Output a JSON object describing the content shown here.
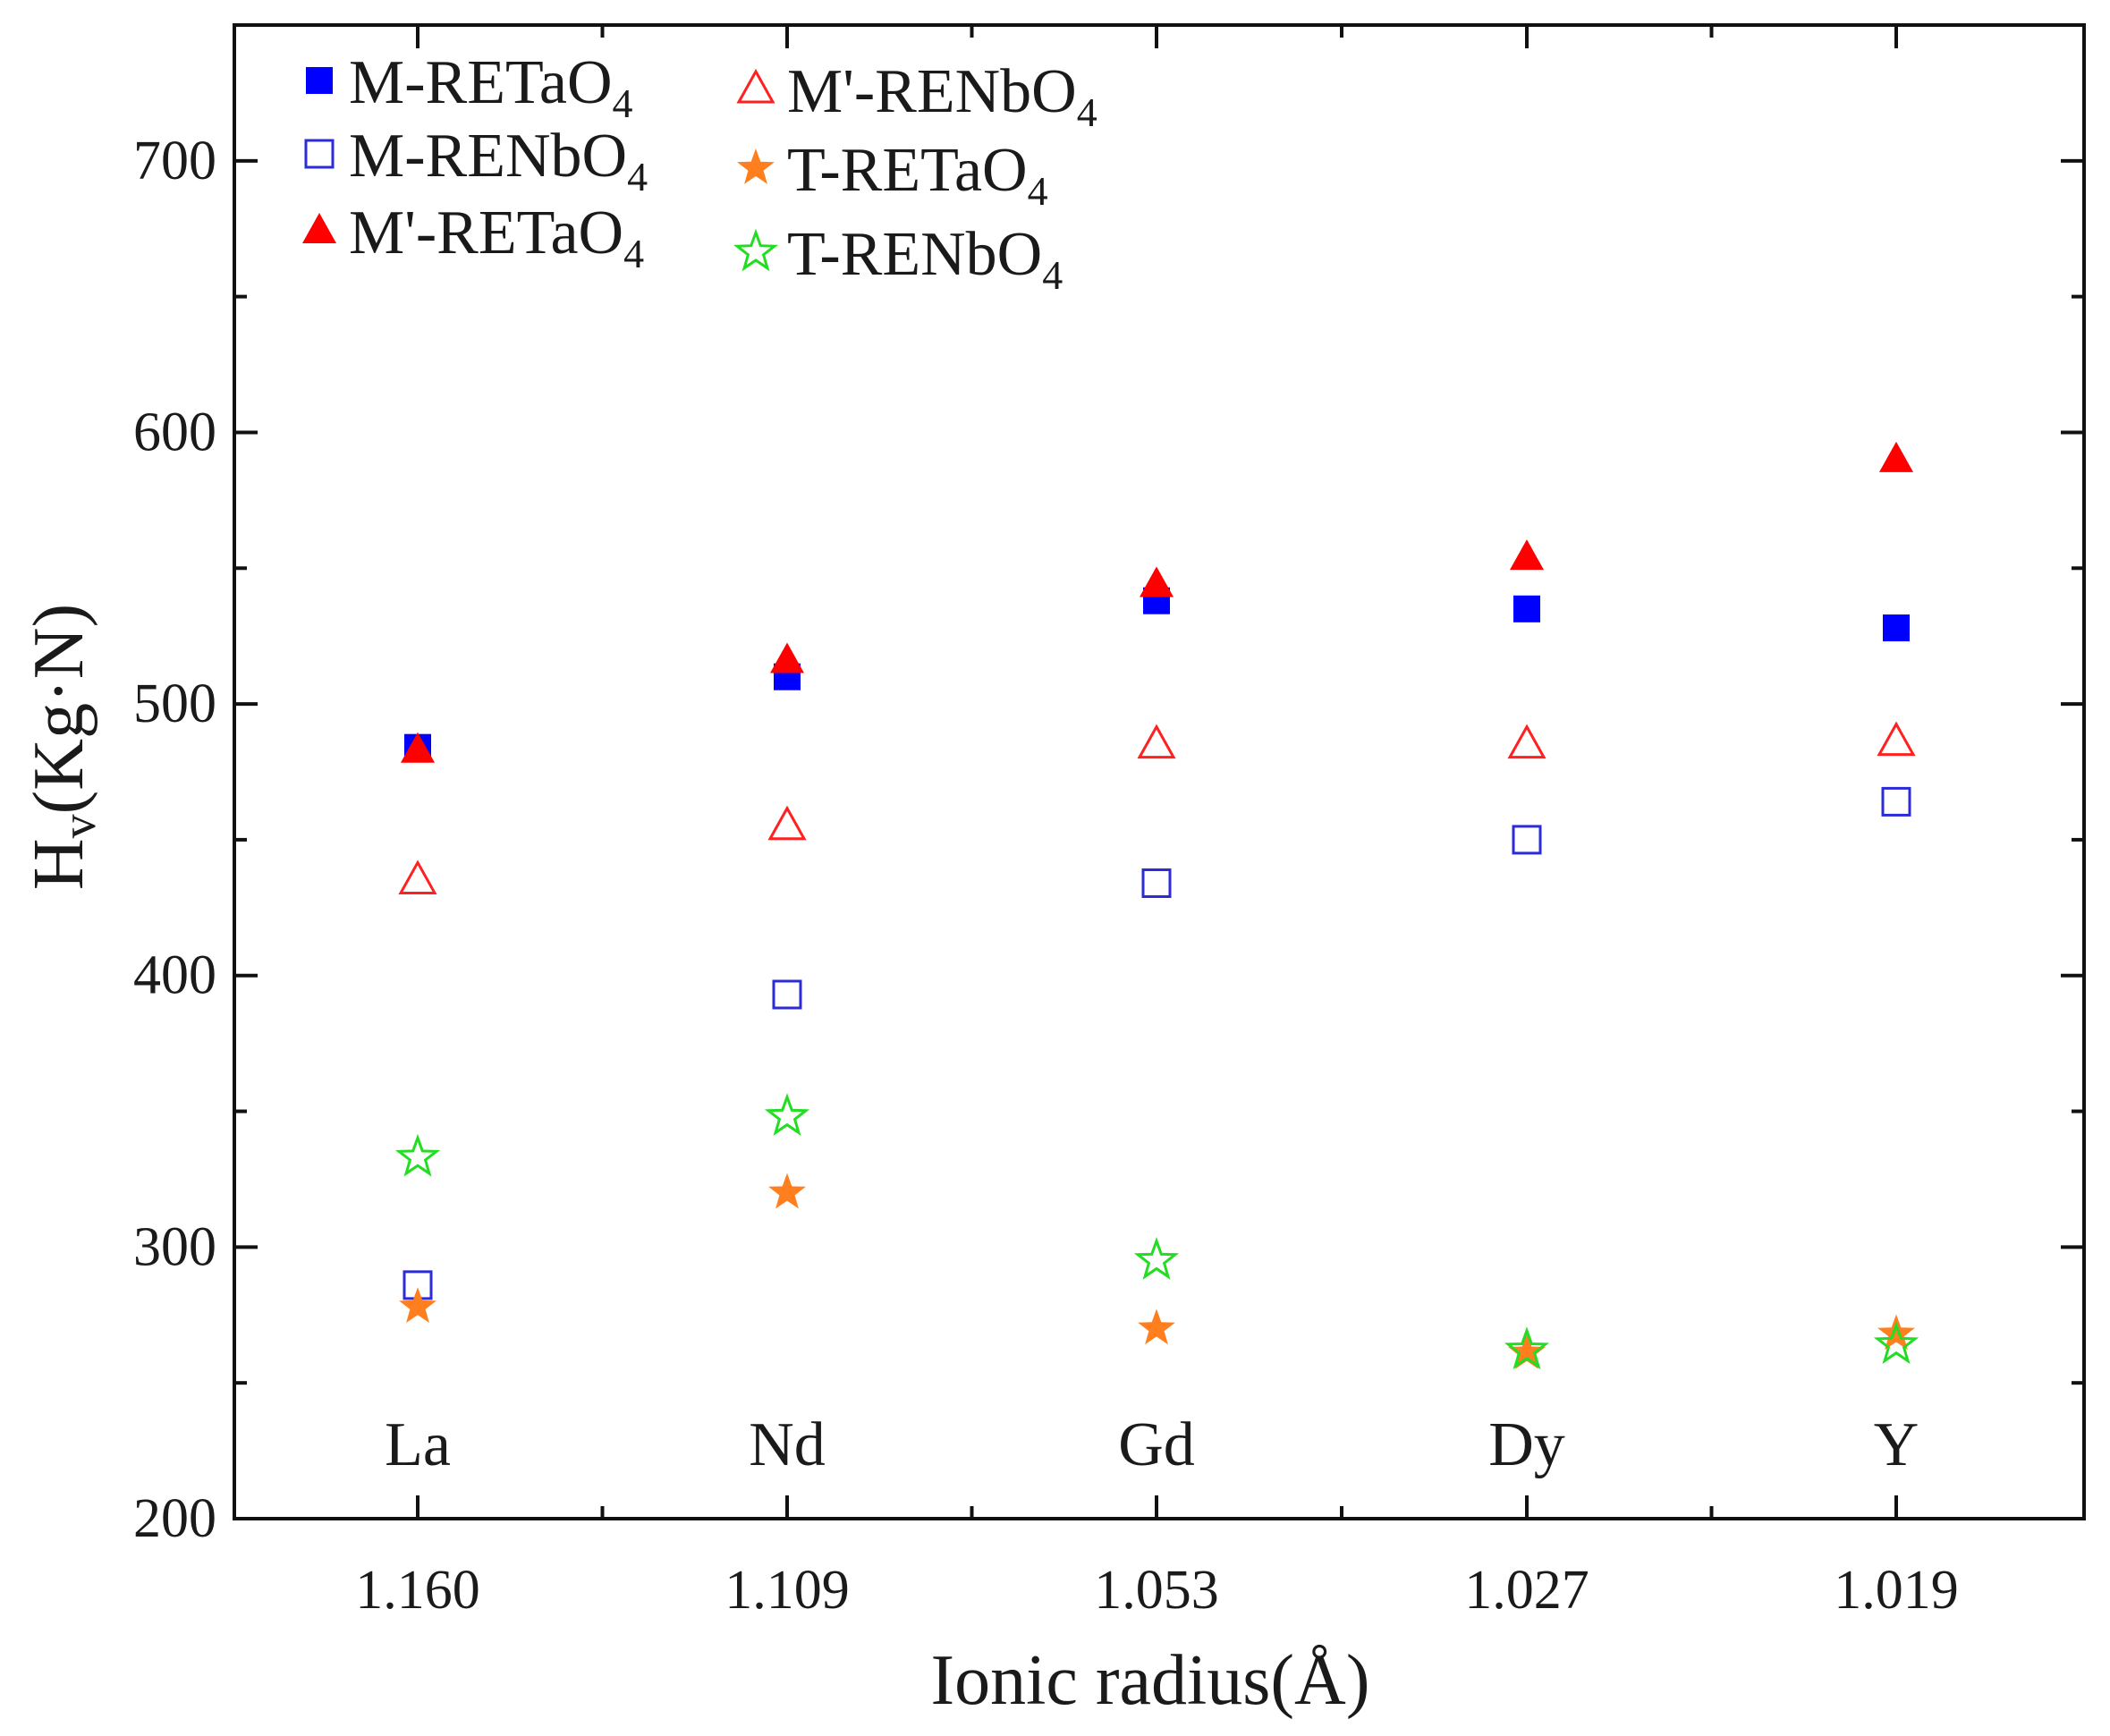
{
  "chart_data": {
    "type": "scatter",
    "title": "",
    "xlabel": "Ionic radius(Å)",
    "ylabel": {
      "main": "H",
      "sub": "v",
      "rest": "(Kg·N)"
    },
    "categories": [
      "1.160",
      "1.109",
      "1.053",
      "1.027",
      "1.019"
    ],
    "element_labels": [
      "La",
      "Nd",
      "Gd",
      "Dy",
      "Y"
    ],
    "ylim": [
      200,
      750
    ],
    "yticks": [
      200,
      300,
      400,
      500,
      600,
      700
    ],
    "grid": false,
    "legend_position": "top-left",
    "series": [
      {
        "name": "M-RETaO",
        "sub": "4",
        "marker": "square",
        "filled": true,
        "color": "#0000ff",
        "values": [
          484,
          510,
          538,
          535,
          528
        ]
      },
      {
        "name": "M-RENbO",
        "sub": "4",
        "marker": "square",
        "filled": false,
        "color": "#2b2bd8",
        "values": [
          286,
          393,
          434,
          450,
          464
        ]
      },
      {
        "name": "M'-RETaO",
        "sub": "4",
        "marker": "triangle",
        "filled": true,
        "color": "#ff0000",
        "values": [
          483,
          516,
          544,
          554,
          590
        ]
      },
      {
        "name": "M'-RENbO",
        "sub": "4",
        "marker": "triangle",
        "filled": false,
        "color": "#ff2020",
        "values": [
          435,
          455,
          485,
          485,
          486
        ]
      },
      {
        "name": "T-RETaO",
        "sub": "4",
        "marker": "star",
        "filled": true,
        "color": "#ff7f1e",
        "values": [
          278,
          320,
          270,
          261,
          268
        ]
      },
      {
        "name": "T-RENbO",
        "sub": "4",
        "marker": "star",
        "filled": false,
        "color": "#22dd22",
        "values": [
          333,
          348,
          295,
          262,
          264
        ]
      }
    ]
  }
}
